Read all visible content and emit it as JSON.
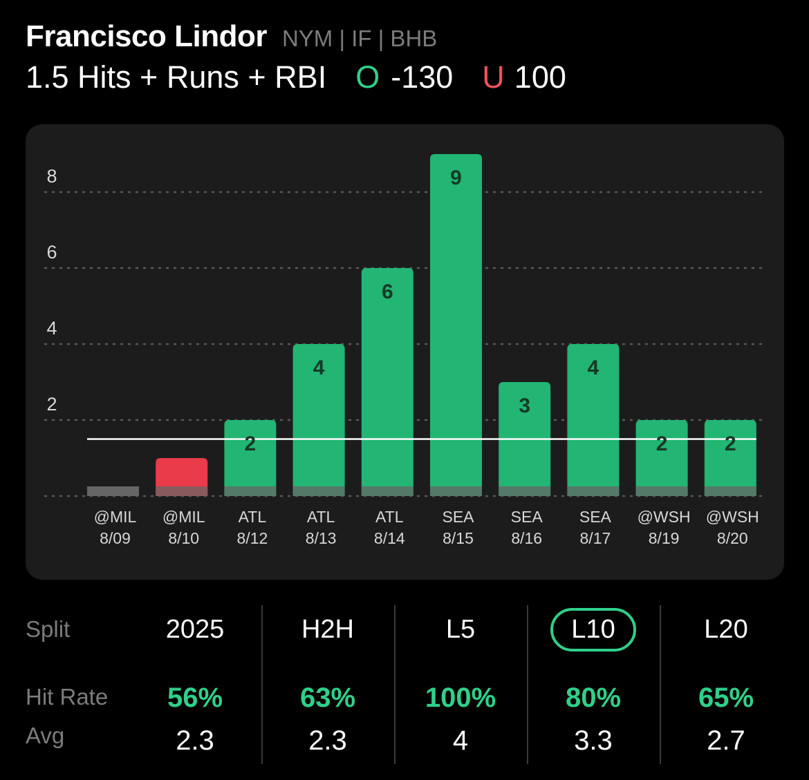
{
  "player": {
    "name": "Francisco Lindor",
    "meta": "NYM | IF | BHB"
  },
  "prop": {
    "line": "1.5 Hits + Runs + RBI",
    "over_label": "O",
    "over_odds": "-130",
    "under_label": "U",
    "under_odds": "100"
  },
  "colors": {
    "over": "#2fd08a",
    "bar_hit": "#22b574",
    "bar_miss": "#ea3b4a",
    "bar_zero": "#666666",
    "under": "#f0525c",
    "card": "#1c1c1c"
  },
  "chart_data": {
    "type": "bar",
    "line_value": 1.5,
    "ylim": [
      0,
      9.5
    ],
    "y_ticks": [
      2,
      4,
      6,
      8
    ],
    "grid": "dotted",
    "categories": [
      {
        "opponent": "@MIL",
        "date": "8/09"
      },
      {
        "opponent": "@MIL",
        "date": "8/10"
      },
      {
        "opponent": "ATL",
        "date": "8/12"
      },
      {
        "opponent": "ATL",
        "date": "8/13"
      },
      {
        "opponent": "ATL",
        "date": "8/14"
      },
      {
        "opponent": "SEA",
        "date": "8/15"
      },
      {
        "opponent": "SEA",
        "date": "8/16"
      },
      {
        "opponent": "SEA",
        "date": "8/17"
      },
      {
        "opponent": "@WSH",
        "date": "8/19"
      },
      {
        "opponent": "@WSH",
        "date": "8/20"
      }
    ],
    "values": [
      0,
      1,
      2,
      4,
      6,
      9,
      3,
      4,
      2,
      2
    ],
    "value_labels": [
      "",
      "",
      "2",
      "4",
      "6",
      "9",
      "3",
      "4",
      "2",
      "2"
    ]
  },
  "splits": {
    "labels": {
      "split": "Split",
      "hit_rate": "Hit Rate",
      "avg": "Avg"
    },
    "columns": [
      {
        "name": "2025",
        "hit_rate": "56%",
        "avg": "2.3"
      },
      {
        "name": "H2H",
        "hit_rate": "63%",
        "avg": "2.3"
      },
      {
        "name": "L5",
        "hit_rate": "100%",
        "avg": "4"
      },
      {
        "name": "L10",
        "hit_rate": "80%",
        "avg": "3.3"
      },
      {
        "name": "L20",
        "hit_rate": "65%",
        "avg": "2.7"
      }
    ],
    "selected": "L10"
  }
}
